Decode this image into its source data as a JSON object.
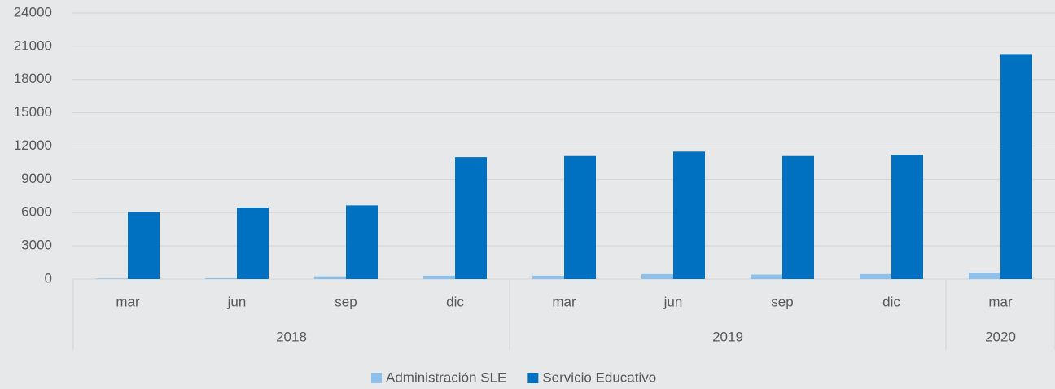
{
  "chart_data": {
    "type": "bar",
    "categories": [
      "mar",
      "jun",
      "sep",
      "dic",
      "mar",
      "jun",
      "sep",
      "dic",
      "mar"
    ],
    "groups": [
      {
        "label": "2018",
        "span": 4
      },
      {
        "label": "2019",
        "span": 4
      },
      {
        "label": "2020",
        "span": 1
      }
    ],
    "series": [
      {
        "name": "Administración SLE",
        "color": "#8fc0e9",
        "values": [
          50,
          100,
          250,
          300,
          300,
          450,
          400,
          450,
          550
        ]
      },
      {
        "name": "Servicio Educativo",
        "color": "#0070c0",
        "values": [
          6050,
          6450,
          6650,
          11000,
          11100,
          11500,
          11100,
          11200,
          20300
        ]
      }
    ],
    "ylim": [
      0,
      24000
    ],
    "yticks": [
      0,
      3000,
      6000,
      9000,
      12000,
      15000,
      18000,
      21000,
      24000
    ],
    "grid": true
  }
}
